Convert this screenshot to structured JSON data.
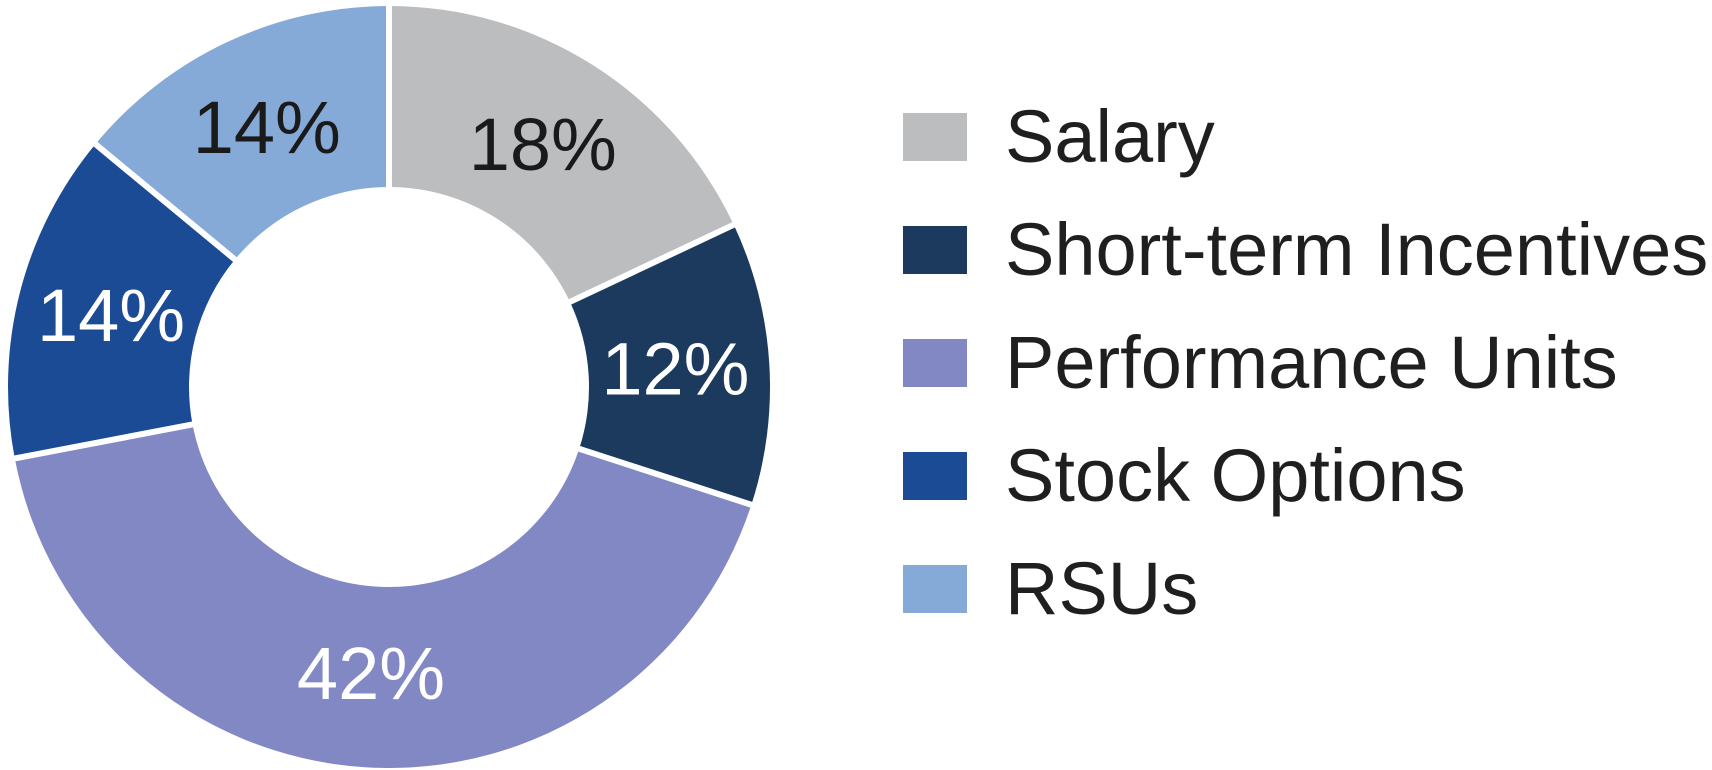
{
  "chart_data": {
    "type": "pie",
    "subtype": "donut",
    "title": "",
    "categories": [
      "Salary",
      "Short-term Incentives",
      "Performance Units",
      "Stock Options",
      "RSUs"
    ],
    "values": [
      18,
      12,
      42,
      14,
      14
    ],
    "slices": [
      {
        "label": "Salary",
        "value": 18,
        "display": "18%",
        "color": "#bcbdbf",
        "label_color": "#1a1a1a"
      },
      {
        "label": "Short-term Incentives",
        "value": 12,
        "display": "12%",
        "color": "#1c3a5e",
        "label_color": "#ffffff"
      },
      {
        "label": "Performance Units",
        "value": 42,
        "display": "42%",
        "color": "#8288c4",
        "label_color": "#ffffff"
      },
      {
        "label": "Stock Options",
        "value": 14,
        "display": "14%",
        "color": "#1c4b96",
        "label_color": "#ffffff"
      },
      {
        "label": "RSUs",
        "value": 14,
        "display": "14%",
        "color": "#85aad8",
        "label_color": "#1a1a1a"
      }
    ],
    "start_angle_deg": 0,
    "direction": "clockwise",
    "legend_position": "right",
    "separator_color": "#ffffff",
    "hole_color": "#ffffff",
    "background_color": "#ffffff",
    "legend_text_color": "#1f1f1f"
  }
}
